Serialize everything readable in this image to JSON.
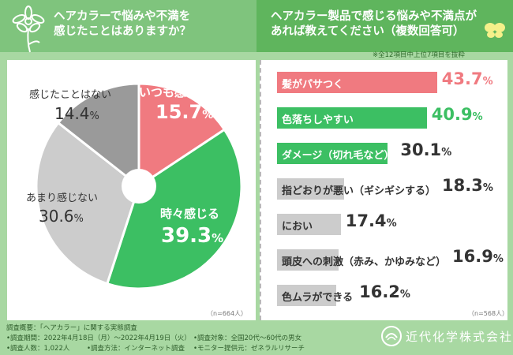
{
  "left_header": {
    "line1": "ヘアカラーで悩みや不満を",
    "line2": "感じたことはありますか？"
  },
  "right_header": {
    "line1": "ヘアカラー製品で感じる悩みや不満点が",
    "line2": "あれば教えてください（複数回答可）"
  },
  "top_note": "※全12項目中上位7項目を抜粋",
  "chart_data": [
    {
      "type": "pie",
      "title": "ヘアカラーで悩みや不満を感じたことはありますか？",
      "unit": "%",
      "slices": [
        {
          "label": "いつも感じる",
          "value": 15.7,
          "color": "#f07a80",
          "text_color": "#ffffff"
        },
        {
          "label": "時々感じる",
          "value": 39.3,
          "color": "#3cbf63",
          "text_color": "#ffffff"
        },
        {
          "label": "あまり感じない",
          "value": 30.6,
          "color": "#cccccc",
          "text_color": "#333333"
        },
        {
          "label": "感じたことはない",
          "value": 14.4,
          "color": "#9a9a9a",
          "text_color": "#333333"
        }
      ],
      "n_label": "（n=664人）"
    },
    {
      "type": "bar",
      "title": "ヘアカラー製品で感じる悩みや不満点があれば教えてください（複数回答可）",
      "unit": "%",
      "categories": [
        "髪がパサつく",
        "色落ちしやすい",
        "ダメージ（切れ毛など）",
        "指どおりが悪い（ギシギシする）",
        "におい",
        "頭皮への刺激（赤み、かゆみなど）",
        "色ムラができる"
      ],
      "values": [
        43.7,
        40.9,
        30.1,
        18.3,
        17.4,
        16.9,
        16.2
      ],
      "colors": [
        "#f07a80",
        "#3cbf63",
        "#3cbf63",
        "#cccccc",
        "#cccccc",
        "#cccccc",
        "#cccccc"
      ],
      "value_colors": [
        "#f07a80",
        "#3cbf63",
        "#333333",
        "#333333",
        "#333333",
        "#333333",
        "#333333"
      ],
      "label_colors": [
        "#ffffff",
        "#ffffff",
        "#ffffff",
        "#333333",
        "#333333",
        "#333333",
        "#333333"
      ],
      "xlim": [
        0,
        50
      ],
      "n_label": "（n=568人）"
    }
  ],
  "footer": {
    "title": "調査概要：「ヘアカラー」に関する実態調査",
    "period": "•調査期間：2022年4月18日（月）～2022年4月19日（火）",
    "target": "•調査対象：全国20代～60代の男女",
    "count": "•調査人数：1,022人",
    "method": "•調査方法：インターネット調査",
    "provider": "•モニター提供元：ゼネラルリサーチ"
  },
  "brand": "近代化学株式会社"
}
